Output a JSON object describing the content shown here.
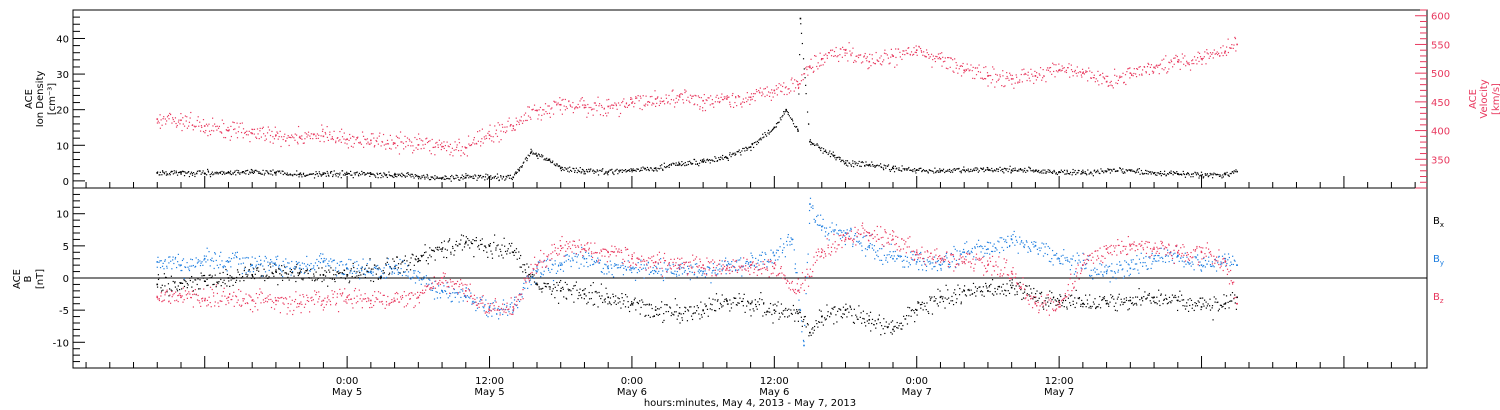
{
  "chart_data": [
    {
      "type": "scatter",
      "panel": "plasma",
      "ylabel_lines": [
        "ACE",
        "Ion Density",
        "[cm⁻³]"
      ],
      "ylabel_right_lines": [
        "ACE",
        "Velocity",
        "[km/s]"
      ],
      "ylim": [
        -2,
        48
      ],
      "ylim_right": [
        300,
        610
      ],
      "yticks": [
        0,
        10,
        20,
        30,
        40
      ],
      "yticks_right": [
        350,
        400,
        450,
        500,
        550,
        600
      ],
      "series": [
        {
          "axis": "left",
          "color": "#000000",
          "points": [
            [
              -16.0,
              2.2
            ],
            [
              -14.0,
              2.3
            ],
            [
              -12.0,
              2.1
            ],
            [
              -10.0,
              2.3
            ],
            [
              -8.0,
              2.4
            ],
            [
              -6.0,
              2.3
            ],
            [
              -4.0,
              1.8
            ],
            [
              -2.0,
              1.9
            ],
            [
              0.0,
              1.9
            ],
            [
              2.0,
              1.9
            ],
            [
              4.0,
              1.7
            ],
            [
              6.0,
              1.2
            ],
            [
              8.0,
              0.8
            ],
            [
              10.0,
              0.9
            ],
            [
              12.0,
              1.0
            ],
            [
              14.0,
              1.0
            ],
            [
              14.5,
              3.0
            ],
            [
              15.5,
              8.0
            ],
            [
              16.0,
              7.0
            ],
            [
              17.0,
              6.0
            ],
            [
              18.0,
              3.5
            ],
            [
              20.0,
              2.6
            ],
            [
              22.0,
              2.5
            ],
            [
              24.0,
              3.0
            ],
            [
              26.0,
              3.6
            ],
            [
              28.0,
              4.8
            ],
            [
              30.0,
              5.5
            ],
            [
              32.0,
              6.5
            ],
            [
              34.0,
              9.5
            ],
            [
              36.0,
              15.0
            ],
            [
              37.0,
              20.0
            ],
            [
              38.0,
              14.0
            ],
            [
              38.2,
              45.6
            ],
            [
              39.0,
              11.0
            ],
            [
              41.0,
              7.0
            ],
            [
              42.0,
              5.0
            ],
            [
              44.0,
              4.5
            ],
            [
              46.0,
              3.5
            ],
            [
              48.0,
              3.0
            ],
            [
              50.0,
              2.8
            ],
            [
              52.0,
              3.0
            ],
            [
              54.0,
              3.2
            ],
            [
              56.0,
              3.0
            ],
            [
              58.0,
              2.8
            ],
            [
              60.0,
              2.5
            ],
            [
              62.0,
              2.3
            ],
            [
              64.0,
              2.7
            ],
            [
              66.0,
              3.0
            ],
            [
              68.0,
              2.2
            ],
            [
              70.0,
              2.0
            ],
            [
              72.0,
              1.4
            ],
            [
              74.0,
              1.8
            ],
            [
              75.0,
              2.6
            ]
          ]
        },
        {
          "axis": "right",
          "color": "#e8385e",
          "points": [
            [
              -16.0,
              420
            ],
            [
              -14.0,
              418
            ],
            [
              -12.0,
              408
            ],
            [
              -10.0,
              400
            ],
            [
              -8.0,
              395
            ],
            [
              -6.0,
              392
            ],
            [
              -4.0,
              388
            ],
            [
              -2.0,
              390
            ],
            [
              0.0,
              385
            ],
            [
              2.0,
              383
            ],
            [
              4.0,
              378
            ],
            [
              6.0,
              375
            ],
            [
              8.0,
              372
            ],
            [
              10.0,
              370
            ],
            [
              12.0,
              392
            ],
            [
              14.0,
              408
            ],
            [
              16.0,
              435
            ],
            [
              18.0,
              445
            ],
            [
              20.0,
              440
            ],
            [
              22.0,
              442
            ],
            [
              24.0,
              448
            ],
            [
              26.0,
              455
            ],
            [
              28.0,
              460
            ],
            [
              30.0,
              452
            ],
            [
              32.0,
              455
            ],
            [
              34.0,
              458
            ],
            [
              36.0,
              470
            ],
            [
              38.0,
              480
            ],
            [
              39.0,
              510
            ],
            [
              40.0,
              525
            ],
            [
              42.0,
              540
            ],
            [
              44.0,
              520
            ],
            [
              46.0,
              530
            ],
            [
              48.0,
              540
            ],
            [
              50.0,
              525
            ],
            [
              52.0,
              505
            ],
            [
              54.0,
              495
            ],
            [
              56.0,
              490
            ],
            [
              58.0,
              495
            ],
            [
              60.0,
              505
            ],
            [
              62.0,
              500
            ],
            [
              64.0,
              485
            ],
            [
              66.0,
              500
            ],
            [
              68.0,
              510
            ],
            [
              70.0,
              520
            ],
            [
              72.0,
              525
            ],
            [
              74.0,
              538
            ],
            [
              75.0,
              550
            ]
          ]
        }
      ]
    },
    {
      "type": "scatter",
      "panel": "magnetic-field",
      "ylabel_lines": [
        "ACE",
        "B",
        "[nT]"
      ],
      "ylim": [
        -14,
        14
      ],
      "yticks": [
        -10,
        -5,
        0,
        5,
        10
      ],
      "series": [
        {
          "name": "Bx",
          "name_main": "B",
          "name_sub": "x",
          "color": "#000000",
          "points": [
            [
              -16.0,
              -1.0
            ],
            [
              -14.0,
              -0.8
            ],
            [
              -12.0,
              -0.5
            ],
            [
              -10.0,
              0.0
            ],
            [
              -8.0,
              0.5
            ],
            [
              -6.0,
              1.0
            ],
            [
              -4.0,
              0.8
            ],
            [
              -2.0,
              0.5
            ],
            [
              0.0,
              0.5
            ],
            [
              2.0,
              1.0
            ],
            [
              4.0,
              1.5
            ],
            [
              6.0,
              3.0
            ],
            [
              8.0,
              4.5
            ],
            [
              10.0,
              5.5
            ],
            [
              12.0,
              5.0
            ],
            [
              14.0,
              4.0
            ],
            [
              16.0,
              -1.0
            ],
            [
              18.0,
              -2.0
            ],
            [
              20.0,
              -2.5
            ],
            [
              22.0,
              -3.0
            ],
            [
              24.0,
              -4.0
            ],
            [
              26.0,
              -5.0
            ],
            [
              28.0,
              -5.5
            ],
            [
              30.0,
              -5.0
            ],
            [
              32.0,
              -3.5
            ],
            [
              34.0,
              -4.0
            ],
            [
              36.0,
              -5.0
            ],
            [
              38.0,
              -5.5
            ],
            [
              39.0,
              -8.5
            ],
            [
              40.0,
              -6.0
            ],
            [
              42.0,
              -5.0
            ],
            [
              44.0,
              -6.5
            ],
            [
              46.0,
              -8.0
            ],
            [
              48.0,
              -5.0
            ],
            [
              50.0,
              -3.0
            ],
            [
              52.0,
              -2.0
            ],
            [
              54.0,
              -2.0
            ],
            [
              56.0,
              -1.5
            ],
            [
              58.0,
              -3.0
            ],
            [
              60.0,
              -3.5
            ],
            [
              62.0,
              -4.0
            ],
            [
              64.0,
              -4.0
            ],
            [
              66.0,
              -3.5
            ],
            [
              68.0,
              -3.0
            ],
            [
              70.0,
              -3.5
            ],
            [
              72.0,
              -4.5
            ],
            [
              74.0,
              -4.0
            ],
            [
              75.0,
              -3.0
            ]
          ]
        },
        {
          "name": "By",
          "name_main": "B",
          "name_sub": "y",
          "color": "#1e7ee0",
          "points": [
            [
              -16.0,
              2.5
            ],
            [
              -14.0,
              2.0
            ],
            [
              -12.0,
              3.0
            ],
            [
              -10.0,
              2.5
            ],
            [
              -8.0,
              2.0
            ],
            [
              -6.0,
              2.0
            ],
            [
              -4.0,
              1.5
            ],
            [
              -2.0,
              2.5
            ],
            [
              0.0,
              1.5
            ],
            [
              2.0,
              1.0
            ],
            [
              4.0,
              1.5
            ],
            [
              6.0,
              0.0
            ],
            [
              8.0,
              -2.0
            ],
            [
              10.0,
              -3.0
            ],
            [
              12.0,
              -4.5
            ],
            [
              14.0,
              -5.0
            ],
            [
              16.0,
              1.0
            ],
            [
              18.0,
              2.0
            ],
            [
              20.0,
              3.0
            ],
            [
              22.0,
              1.5
            ],
            [
              24.0,
              1.5
            ],
            [
              26.0,
              1.0
            ],
            [
              28.0,
              1.5
            ],
            [
              30.0,
              1.0
            ],
            [
              32.0,
              2.0
            ],
            [
              34.0,
              2.5
            ],
            [
              36.0,
              3.5
            ],
            [
              37.5,
              6.0
            ],
            [
              38.5,
              -10.5
            ],
            [
              39.0,
              11.5
            ],
            [
              40.0,
              8.0
            ],
            [
              42.0,
              7.0
            ],
            [
              44.0,
              5.0
            ],
            [
              46.0,
              3.0
            ],
            [
              48.0,
              2.5
            ],
            [
              50.0,
              2.0
            ],
            [
              52.0,
              4.0
            ],
            [
              54.0,
              4.5
            ],
            [
              56.0,
              6.0
            ],
            [
              58.0,
              5.0
            ],
            [
              60.0,
              3.0
            ],
            [
              62.0,
              2.0
            ],
            [
              64.0,
              1.0
            ],
            [
              66.0,
              1.5
            ],
            [
              68.0,
              3.0
            ],
            [
              70.0,
              3.5
            ],
            [
              72.0,
              2.0
            ],
            [
              74.0,
              3.0
            ],
            [
              75.0,
              2.0
            ]
          ]
        },
        {
          "name": "Bz",
          "name_main": "B",
          "name_sub": "z",
          "color": "#e8385e",
          "points": [
            [
              -16.0,
              -3.0
            ],
            [
              -14.0,
              -3.0
            ],
            [
              -12.0,
              -3.5
            ],
            [
              -10.0,
              -3.0
            ],
            [
              -8.0,
              -3.5
            ],
            [
              -6.0,
              -3.5
            ],
            [
              -4.0,
              -4.0
            ],
            [
              -2.0,
              -3.5
            ],
            [
              0.0,
              -3.0
            ],
            [
              2.0,
              -3.5
            ],
            [
              4.0,
              -3.5
            ],
            [
              6.0,
              -3.0
            ],
            [
              8.0,
              0.0
            ],
            [
              10.0,
              -2.0
            ],
            [
              12.0,
              -5.0
            ],
            [
              14.0,
              -4.5
            ],
            [
              16.0,
              2.0
            ],
            [
              18.0,
              5.0
            ],
            [
              20.0,
              4.5
            ],
            [
              22.0,
              4.0
            ],
            [
              24.0,
              3.0
            ],
            [
              26.0,
              2.5
            ],
            [
              28.0,
              2.0
            ],
            [
              30.0,
              2.0
            ],
            [
              32.0,
              1.5
            ],
            [
              34.0,
              2.0
            ],
            [
              36.0,
              1.5
            ],
            [
              38.0,
              -2.0
            ],
            [
              40.0,
              4.0
            ],
            [
              42.0,
              6.0
            ],
            [
              44.0,
              7.0
            ],
            [
              46.0,
              6.0
            ],
            [
              48.0,
              4.0
            ],
            [
              50.0,
              3.0
            ],
            [
              52.0,
              2.5
            ],
            [
              54.0,
              2.0
            ],
            [
              56.0,
              1.0
            ],
            [
              58.0,
              -4.0
            ],
            [
              60.0,
              -4.5
            ],
            [
              62.0,
              2.0
            ],
            [
              64.0,
              4.5
            ],
            [
              66.0,
              5.0
            ],
            [
              68.0,
              4.5
            ],
            [
              70.0,
              4.0
            ],
            [
              72.0,
              4.0
            ],
            [
              74.0,
              2.5
            ],
            [
              75.0,
              -4.0
            ]
          ]
        }
      ]
    }
  ],
  "time_axis": {
    "xlim": [
      -23.1,
      91.0
    ],
    "major_ticks": [
      {
        "hour": 0,
        "time": "0:00",
        "date": "May 5"
      },
      {
        "hour": 12,
        "time": "12:00",
        "date": "May 5"
      },
      {
        "hour": 24,
        "time": "0:00",
        "date": "May 6"
      },
      {
        "hour": 36,
        "time": "12:00",
        "date": "May 6"
      },
      {
        "hour": 48,
        "time": "0:00",
        "date": "May 7"
      },
      {
        "hour": 60,
        "time": "12:00",
        "date": "May 7"
      }
    ],
    "minor_tick_step_hours": 2,
    "xlabel": "hours:minutes, May  4, 2013 - May  7, 2013"
  },
  "colors": {
    "black_series": "#000000",
    "red_series": "#e8385e",
    "blue_series": "#1e7ee0",
    "frame": "#000000"
  }
}
